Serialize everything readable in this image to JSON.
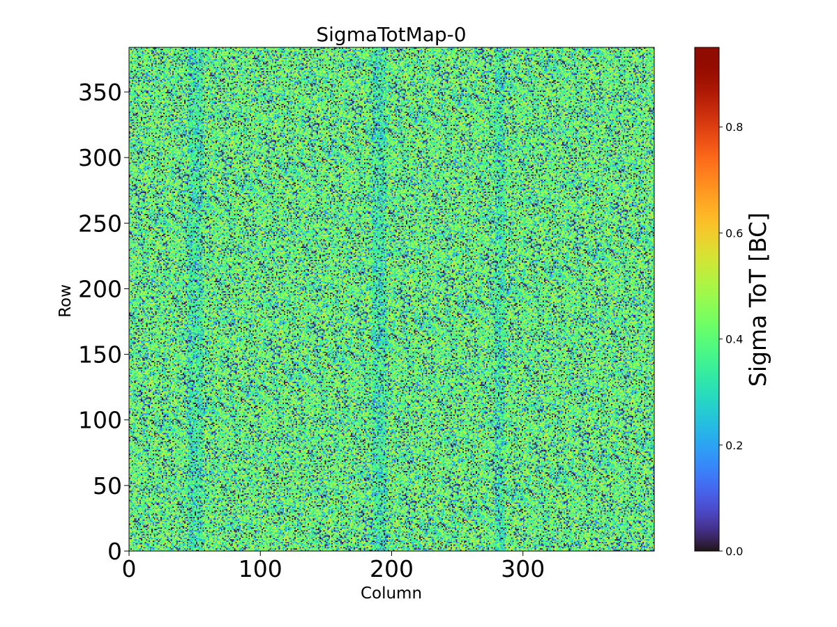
{
  "chart_data": {
    "type": "heatmap",
    "title": "SigmaTotMap-0",
    "xlabel": "Column",
    "ylabel": "Row",
    "xlim": [
      0,
      400
    ],
    "ylim": [
      0,
      384
    ],
    "xticks": [
      0,
      100,
      200,
      300
    ],
    "yticks": [
      0,
      50,
      100,
      150,
      200,
      250,
      300,
      350
    ],
    "colorbar": {
      "label": "Sigma ToT [BC]",
      "range": [
        0.0,
        0.95
      ],
      "ticks": [
        0.0,
        0.2,
        0.4,
        0.6,
        0.8
      ],
      "colormap": "turbo"
    },
    "grid": false
  }
}
